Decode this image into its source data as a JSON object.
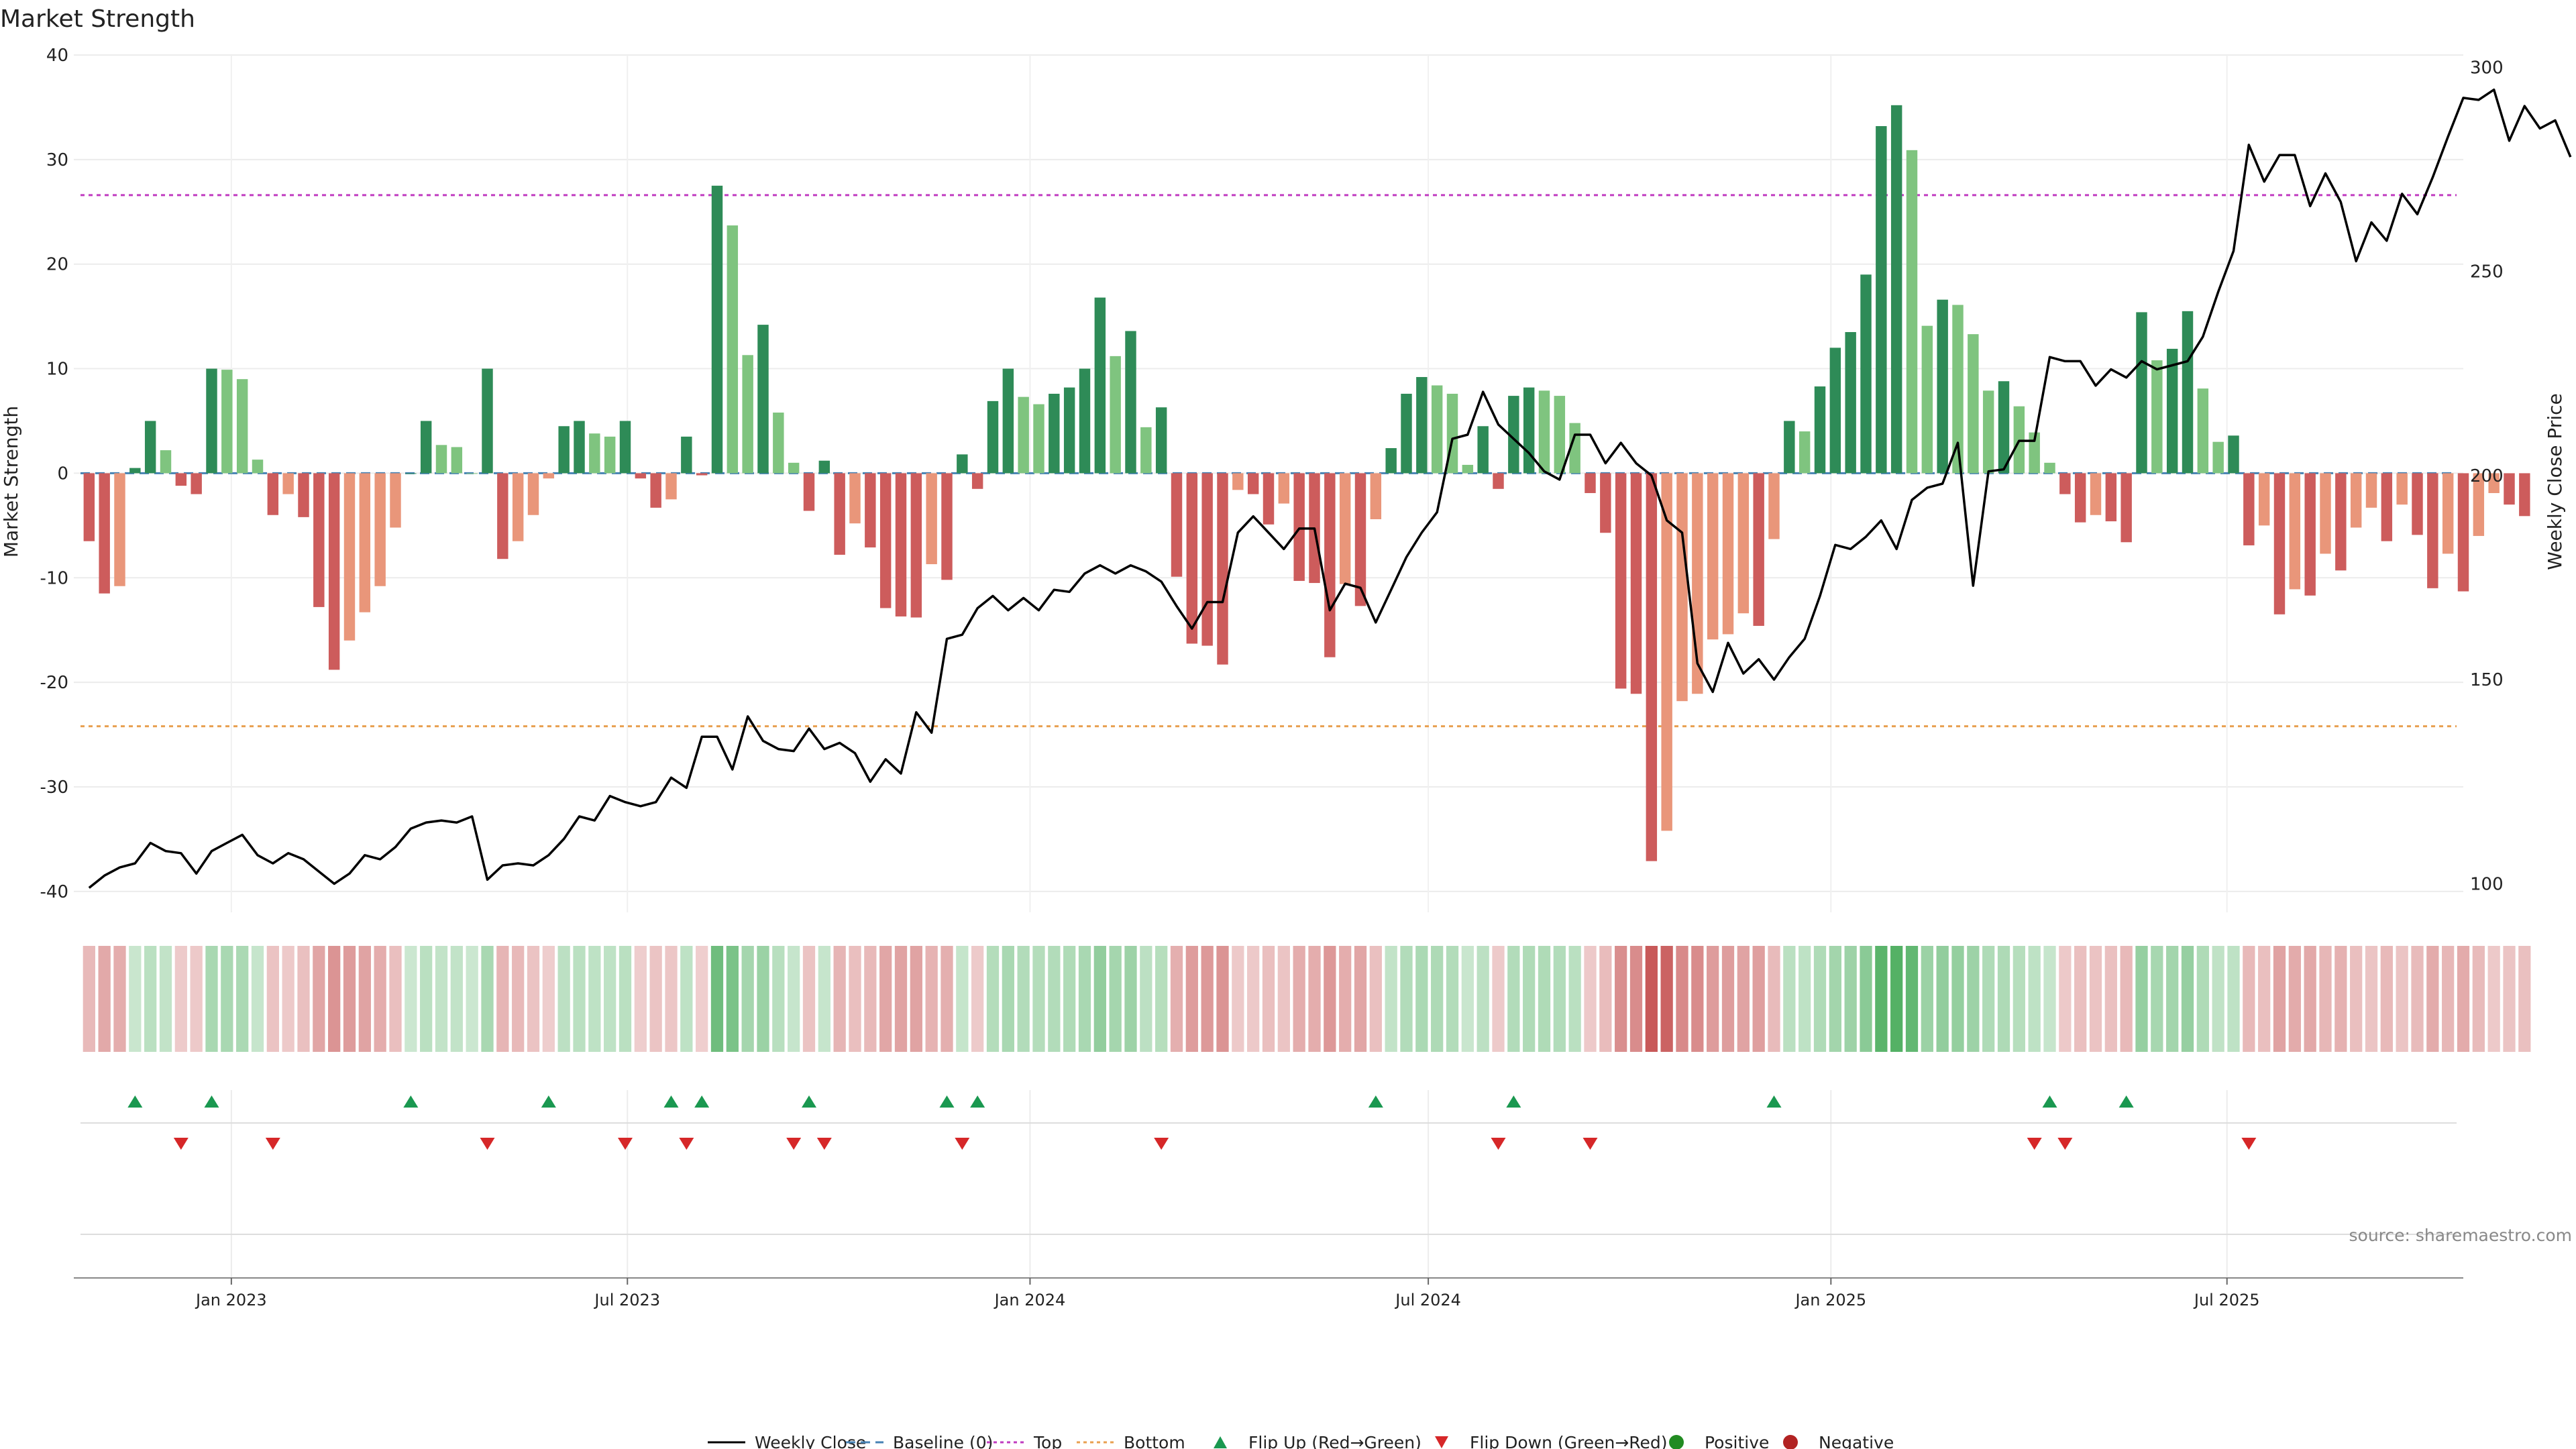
{
  "title": "Market Strength",
  "chart_data": {
    "type": "bar+line",
    "x_range": [
      "2022-10-21",
      "2025-10-17"
    ],
    "x_tick_labels": [
      {
        "date": "2023-01-01",
        "label": "Jan 2023"
      },
      {
        "date": "2023-07-01",
        "label": "Jul 2023"
      },
      {
        "date": "2024-01-01",
        "label": "Jan 2024"
      },
      {
        "date": "2024-07-01",
        "label": "Jul 2024"
      },
      {
        "date": "2025-01-01",
        "label": "Jan 2025"
      },
      {
        "date": "2025-07-01",
        "label": "Jul 2025"
      }
    ],
    "start_week": "2022-10-28",
    "y_left": {
      "label": "Market Strength",
      "range": [
        -42,
        40
      ],
      "ticks": [
        40,
        30,
        20,
        10,
        0,
        -10,
        -20,
        -30,
        -40
      ]
    },
    "y_right": {
      "label": "Weekly Close Price",
      "range": [
        93,
        303
      ],
      "ticks": [
        300,
        250,
        200,
        150,
        100
      ]
    },
    "top_threshold": 26.6,
    "bottom_threshold": -24.2,
    "strength": [
      -6.5,
      -11.5,
      -10.8,
      0.5,
      5,
      2.2,
      -1.2,
      -2,
      10,
      9.9,
      9,
      1.3,
      -4,
      -2,
      -4.2,
      -12.8,
      -18.8,
      -16,
      -13.3,
      -10.8,
      -5.2,
      0,
      5,
      2.7,
      2.5,
      0,
      10,
      -8.2,
      -6.5,
      -4,
      -0.5,
      4.5,
      5,
      3.8,
      3.5,
      5,
      -0.5,
      -3.3,
      -2.5,
      3.5,
      -0.2,
      27.5,
      23.7,
      11.3,
      14.2,
      5.8,
      1,
      -3.6,
      1.2,
      -7.8,
      -4.8,
      -7.1,
      -12.9,
      -13.7,
      -13.8,
      -8.7,
      -10.2,
      1.8,
      -1.5,
      6.9,
      10,
      7.3,
      6.6,
      7.6,
      8.2,
      10,
      16.8,
      11.2,
      13.6,
      4.4,
      6.3,
      -9.9,
      -16.3,
      -16.5,
      -18.3,
      -1.6,
      -2,
      -4.9,
      -2.9,
      -10.3,
      -10.5,
      -17.6,
      -10.6,
      -12.7,
      -4.4,
      2.4,
      7.6,
      9.2,
      8.4,
      7.6,
      0.8,
      4.5,
      -1.5,
      7.4,
      8.2,
      7.9,
      7.4,
      4.8,
      -1.9,
      -5.7,
      -20.6,
      -21.1,
      -37.1,
      -34.2,
      -21.8,
      -21.1,
      -15.9,
      -15.4,
      -13.4,
      -14.6,
      -6.3,
      5,
      4,
      8.3,
      12,
      13.5,
      19,
      33.2,
      35.2,
      30.9,
      14.1,
      16.6,
      16.1,
      13.3,
      7.9,
      8.8,
      6.4,
      3.9,
      1,
      -2,
      -4.7,
      -4,
      -4.6,
      -6.6,
      15.4,
      10.8,
      11.9,
      15.5,
      8.1,
      3,
      3.6,
      -6.9,
      -5,
      -13.5,
      -11.1,
      -11.7,
      -7.7,
      -9.3,
      -5.2,
      -3.3,
      -6.5,
      -3,
      -5.9,
      -11,
      -7.7,
      -11.3,
      -6,
      -1.9,
      -3,
      -4.1
    ],
    "weekly_close": [
      99,
      102,
      104,
      105,
      110,
      108,
      107.5,
      102.5,
      108,
      110,
      112,
      107,
      105,
      107.5,
      106,
      103,
      100,
      102.5,
      107,
      106,
      109,
      113.5,
      115,
      115.5,
      115,
      116.5,
      101,
      104.5,
      105,
      104.5,
      107,
      111,
      116.5,
      115.5,
      121.5,
      120,
      119,
      120,
      126,
      123.5,
      136,
      136,
      128,
      141,
      135,
      133,
      132.5,
      138,
      133,
      134.5,
      132,
      125,
      130.5,
      127,
      142,
      137,
      160,
      161,
      167.5,
      170.5,
      167,
      170,
      167,
      172,
      171.5,
      176,
      178,
      176,
      178,
      176.5,
      174,
      168,
      162.5,
      169,
      169,
      186,
      190,
      186,
      182,
      187,
      187,
      167,
      173.5,
      172.5,
      164,
      172,
      180,
      186,
      191,
      209,
      210,
      220.5,
      212.5,
      209,
      205.5,
      201,
      199,
      210,
      210,
      203,
      208,
      203,
      200,
      189,
      186,
      154,
      147,
      159,
      151.5,
      155,
      150,
      155.5,
      160,
      170.5,
      183,
      182,
      185,
      189,
      182,
      194,
      197,
      198,
      208,
      173,
      201,
      201.5,
      208.5,
      208.5,
      229,
      228,
      228,
      222,
      226,
      224,
      228,
      226,
      227,
      228,
      234,
      245,
      255,
      281,
      272,
      278.5,
      278.5,
      266,
      274,
      267,
      252.5,
      262,
      257.5,
      269,
      264,
      273,
      283,
      292.5,
      292,
      294.5,
      282,
      290.5,
      285,
      287,
      278
    ],
    "heat_strip_values": [
      -6.5,
      -11.5,
      -10.8,
      0.5,
      5,
      2.2,
      -1.2,
      -2,
      10,
      9.9,
      9,
      1.3,
      -4,
      -2,
      -4.2,
      -12.8,
      -18.8,
      -16,
      -13.3,
      -10.8,
      -5.2,
      0,
      5,
      2.7,
      2.5,
      0,
      10,
      -8.2,
      -6.5,
      -4,
      -0.5,
      4.5,
      5,
      3.8,
      3.5,
      5,
      -0.5,
      -3.3,
      -2.5,
      3.5,
      -0.2,
      27.5,
      23.7,
      11.3,
      14.2,
      5.8,
      1,
      -3.6,
      1.2,
      -7.8,
      -4.8,
      -7.1,
      -12.9,
      -13.7,
      -13.8,
      -8.7,
      -10.2,
      1.8,
      -1.5,
      6.9,
      10,
      7.3,
      6.6,
      7.6,
      8.2,
      10,
      16.8,
      11.2,
      13.6,
      4.4,
      6.3,
      -9.9,
      -16.3,
      -16.5,
      -18.3,
      -1.6,
      -2,
      -4.9,
      -2.9,
      -10.3,
      -10.5,
      -17.6,
      -10.6,
      -12.7,
      -4.4,
      2.4,
      7.6,
      9.2,
      8.4,
      7.6,
      0.8,
      4.5,
      -1.5,
      7.4,
      8.2,
      7.9,
      7.4,
      4.8,
      -1.9,
      -5.7,
      -20.6,
      -21.1,
      -37.1,
      -34.2,
      -21.8,
      -21.1,
      -15.9,
      -15.4,
      -13.4,
      -14.6,
      -6.3,
      5,
      4,
      8.3,
      12,
      13.5,
      19,
      33.2,
      35.2,
      30.9,
      14.1,
      16.6,
      16.1,
      13.3,
      7.9,
      8.8,
      6.4,
      3.9,
      1,
      -2,
      -4.7,
      -4,
      -4.6,
      -6.6,
      15.4,
      10.8,
      11.9,
      15.5,
      8.1,
      3,
      3.6,
      -6.9,
      -5,
      -13.5,
      -11.1,
      -11.7,
      -7.7,
      -9.3,
      -5.2,
      -3.3,
      -6.5,
      -3,
      -5.9,
      -11,
      -7.7,
      -11.3,
      -6,
      -1.9,
      -3,
      -4.1
    ],
    "flip_up_weeks": [
      3,
      8,
      21,
      30,
      38,
      40,
      47,
      56,
      58,
      84,
      93,
      110,
      128,
      133
    ],
    "flip_down_weeks": [
      6,
      12,
      26,
      35,
      39,
      46,
      48,
      57,
      70,
      92,
      98,
      127,
      129,
      141
    ],
    "colors": {
      "positive_strong": "#2e8b57",
      "positive_weak": "#7fc47f",
      "negative_strong": "#cd5c5c",
      "negative_weak": "#e9967a",
      "line": "#000000",
      "baseline": "#4682b4",
      "top": "#c03cc0",
      "bottom": "#e8a050",
      "flip_up": "#1a9850",
      "flip_down": "#d62728",
      "positive_dot": "#228b22",
      "negative_dot": "#b22222"
    },
    "legend": [
      "Weekly Close",
      "Baseline (0)",
      "Top",
      "Bottom",
      "Flip Up (Red→Green)",
      "Flip Down (Green→Red)",
      "Positive",
      "Negative"
    ]
  },
  "source": "source: sharemaestro.com"
}
